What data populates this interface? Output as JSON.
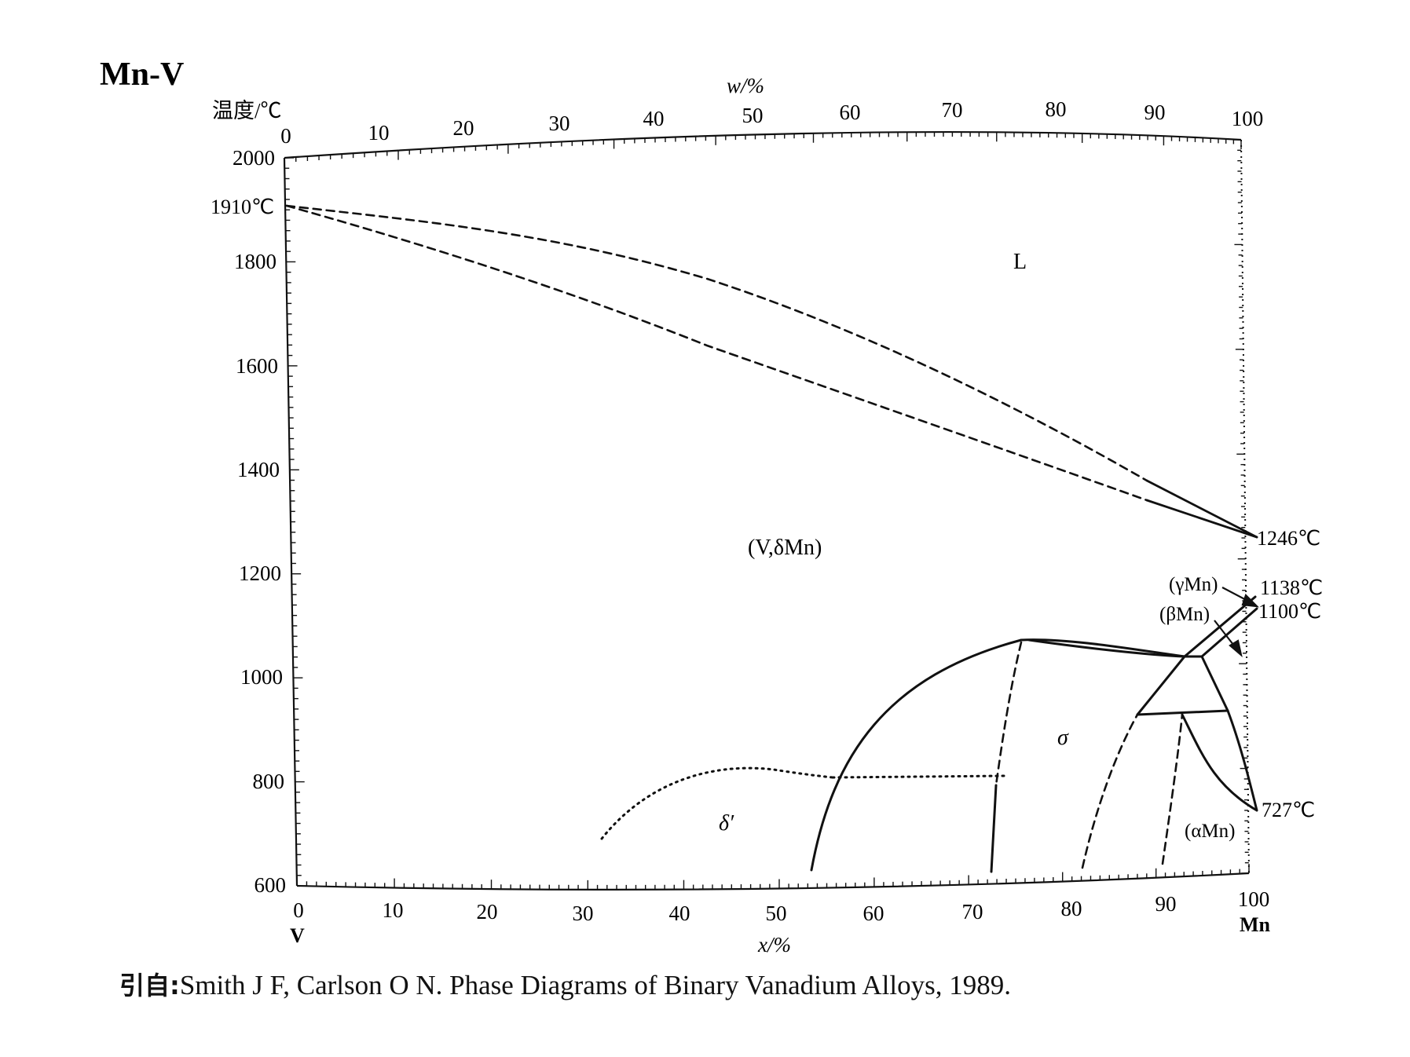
{
  "title": "Mn-V",
  "y_axis": {
    "label": "温度/℃",
    "ticks": [
      "2000",
      "1800",
      "1600",
      "1400",
      "1200",
      "1000",
      "800",
      "600"
    ]
  },
  "x_bottom": {
    "label": "x/%",
    "ticks": [
      "0",
      "10",
      "20",
      "30",
      "40",
      "50",
      "60",
      "70",
      "80",
      "90",
      "100"
    ]
  },
  "x_top": {
    "label": "w/%",
    "ticks": [
      "0",
      "10",
      "20",
      "30",
      "40",
      "50",
      "60",
      "70",
      "80",
      "90",
      "100"
    ]
  },
  "elements": {
    "left": "V",
    "right": "Mn"
  },
  "phases": {
    "liquid": "L",
    "bcc": "(V,δMn)",
    "sigma": "σ",
    "delta_prime": "δ′",
    "gamma_mn": "(γMn)",
    "beta_mn": "(βMn)",
    "alpha_mn": "(αMn)"
  },
  "temperature_labels": {
    "v_melt": "1910℃",
    "mn_melt": "1246℃",
    "t1138": "1138℃",
    "t1100": "1100℃",
    "t727": "727℃"
  },
  "citation": {
    "prefix": "引自:",
    "text": "Smith J F, Carlson O N. Phase Diagrams of Binary Vanadium Alloys, 1989."
  },
  "colors": {
    "ink": "#111111",
    "background": "#ffffff"
  }
}
